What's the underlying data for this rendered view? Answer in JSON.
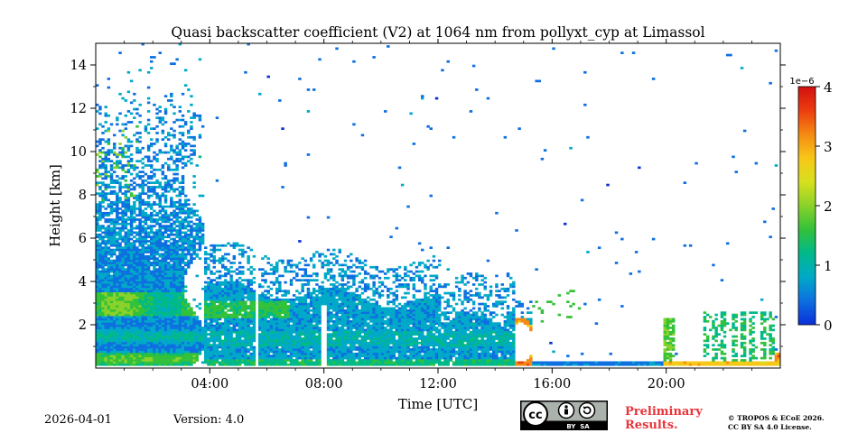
{
  "chart_data": {
    "type": "heatmap",
    "title": "Quasi backscatter coefficient (V2) at 1064 nm from pollyxt_cyp at Limassol",
    "xlabel": "Time [UTC]",
    "ylabel": "Height [km]",
    "xlim_hours": [
      0,
      24
    ],
    "ylim_km": [
      0,
      15
    ],
    "x_ticks": [
      {
        "value": 4,
        "label": "04:00"
      },
      {
        "value": 8,
        "label": "08:00"
      },
      {
        "value": 12,
        "label": "12:00"
      },
      {
        "value": 16,
        "label": "16:00"
      },
      {
        "value": 20,
        "label": "20:00"
      }
    ],
    "y_ticks": [
      {
        "value": 2,
        "label": "2"
      },
      {
        "value": 4,
        "label": "4"
      },
      {
        "value": 6,
        "label": "6"
      },
      {
        "value": 8,
        "label": "8"
      },
      {
        "value": 10,
        "label": "10"
      },
      {
        "value": 12,
        "label": "12"
      },
      {
        "value": 14,
        "label": "14"
      }
    ],
    "colorbar": {
      "range": [
        0,
        4
      ],
      "scale_label": "1e−6",
      "ticks": [
        {
          "value": 0,
          "label": "0"
        },
        {
          "value": 1,
          "label": "1"
        },
        {
          "value": 2,
          "label": "2"
        },
        {
          "value": 3,
          "label": "3"
        },
        {
          "value": 4,
          "label": "4"
        }
      ],
      "colors": [
        "#0a2fd8",
        "#0d6fe0",
        "#00a9c8",
        "#00b98a",
        "#33c13a",
        "#8ad12a",
        "#d7e01e",
        "#f7c718",
        "#f58a12",
        "#eb3d10",
        "#d21010"
      ]
    },
    "features": [
      {
        "name": "aerosol layer 2.5-3.3 km",
        "start": 0,
        "end": 6.5,
        "height_km": 2.8
      },
      {
        "name": "boundary layer aerosol 0-1.5 km",
        "start": 0,
        "end": 20,
        "height_km": 0.8
      },
      {
        "name": "surface cloud / fog",
        "start": 14.0,
        "end": 15.0,
        "height_km": 0.6
      }
    ]
  },
  "footer": {
    "date": "2026-04-01",
    "version": "Version: 4.0",
    "preliminary_line1": "Preliminary",
    "preliminary_line2": "Results.",
    "copyright_line1": "© TROPOS & ECoE 2026.",
    "copyright_line2": "CC BY SA 4.0 License.",
    "license_badge": "BY  SA"
  }
}
